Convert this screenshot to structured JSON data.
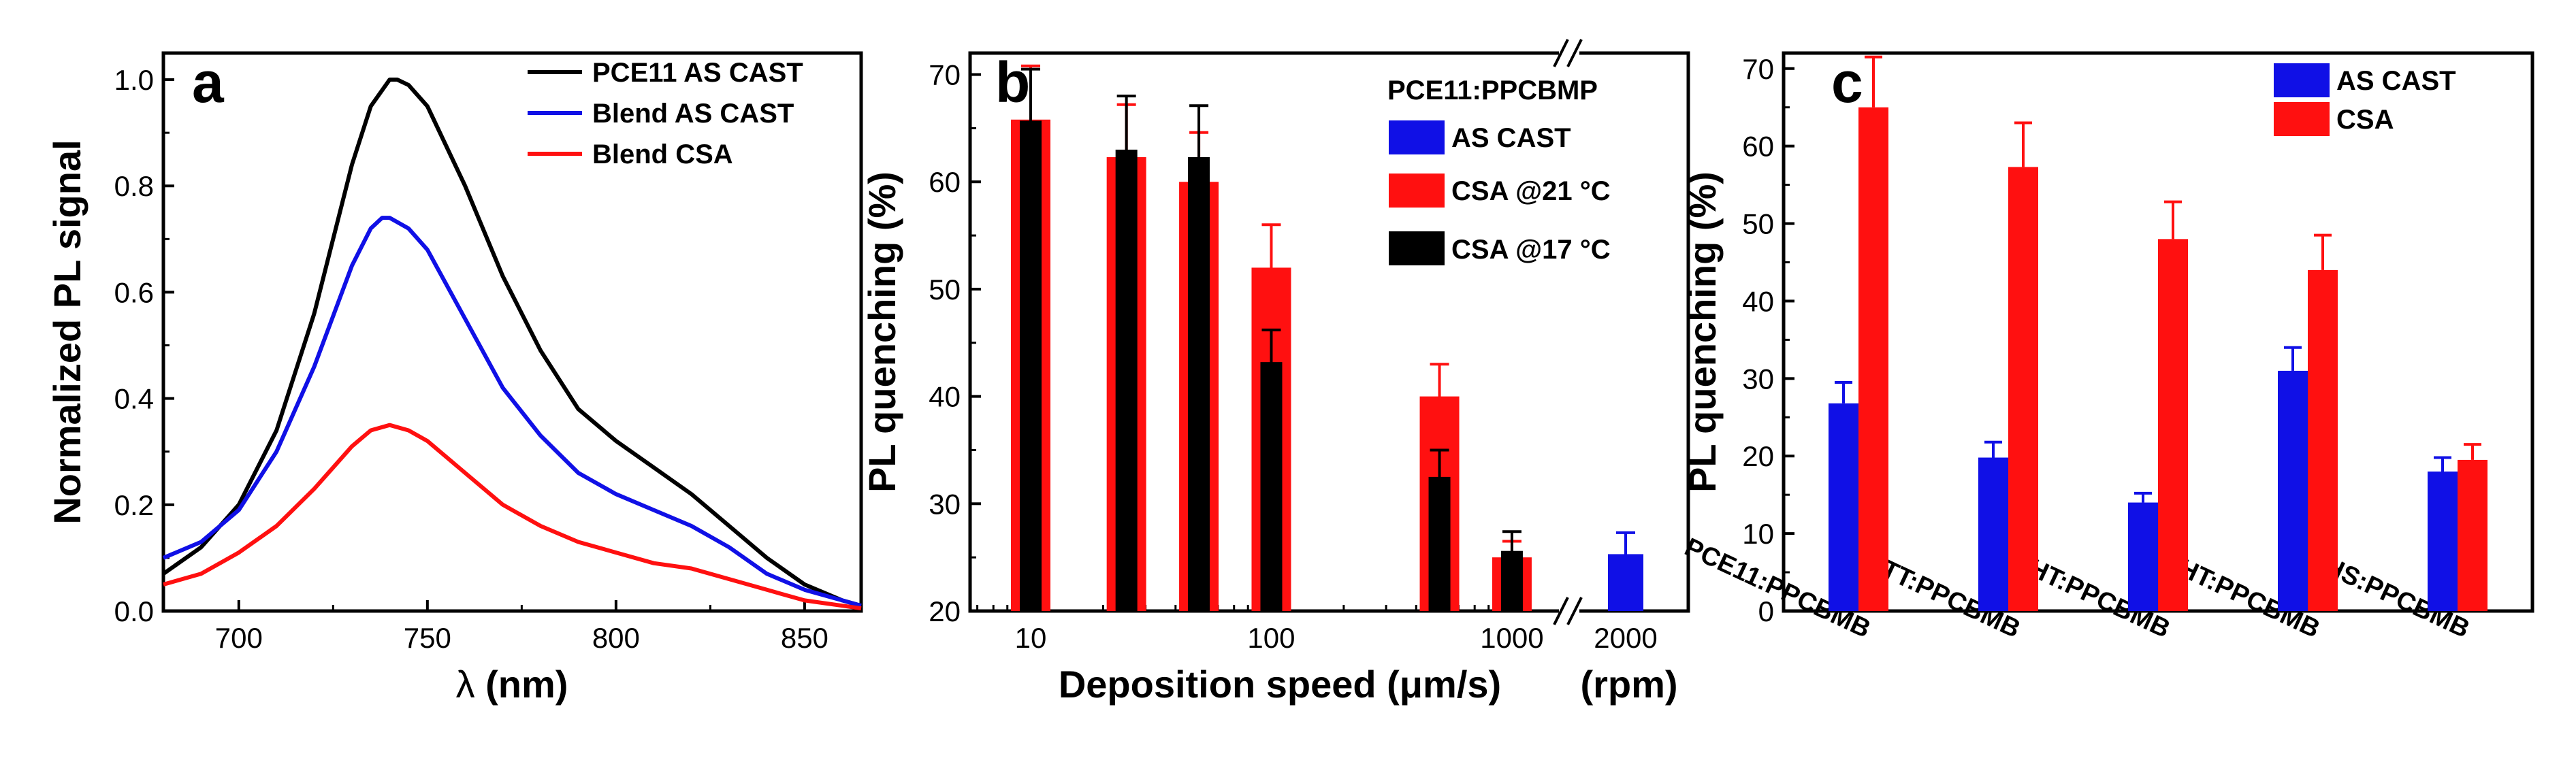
{
  "colors": {
    "black": "#000000",
    "blue": "#1010e6",
    "red": "#ff1010"
  },
  "chart_data": [
    {
      "panel": "a",
      "type": "line",
      "xlabel_symbol": "λ",
      "xlabel_unit": "(nm)",
      "ylabel": "Normalized PL signal",
      "xlim": [
        680,
        865
      ],
      "ylim": [
        0,
        1.05
      ],
      "x_ticks": [
        "700",
        "750",
        "800",
        "850"
      ],
      "y_ticks": [
        "0.0",
        "0.2",
        "0.4",
        "0.6",
        "0.8",
        "1.0"
      ],
      "legend_position": "top-right",
      "series": [
        {
          "name": "PCE11 AS CAST",
          "color": "#000000",
          "x": [
            680,
            690,
            700,
            710,
            720,
            730,
            735,
            740,
            742,
            745,
            750,
            760,
            770,
            780,
            790,
            800,
            810,
            820,
            830,
            840,
            850,
            860,
            865
          ],
          "y": [
            0.07,
            0.12,
            0.2,
            0.34,
            0.56,
            0.84,
            0.95,
            1.0,
            1.0,
            0.99,
            0.95,
            0.8,
            0.63,
            0.49,
            0.38,
            0.32,
            0.27,
            0.22,
            0.16,
            0.1,
            0.05,
            0.02,
            0.01
          ]
        },
        {
          "name": "Blend AS CAST",
          "color": "#1010e6",
          "x": [
            680,
            690,
            700,
            710,
            720,
            730,
            735,
            738,
            740,
            745,
            750,
            760,
            770,
            780,
            790,
            800,
            810,
            820,
            830,
            840,
            850,
            860,
            865
          ],
          "y": [
            0.1,
            0.13,
            0.19,
            0.3,
            0.46,
            0.65,
            0.72,
            0.74,
            0.74,
            0.72,
            0.68,
            0.55,
            0.42,
            0.33,
            0.26,
            0.22,
            0.19,
            0.16,
            0.12,
            0.07,
            0.04,
            0.02,
            0.01
          ]
        },
        {
          "name": "Blend CSA",
          "color": "#ff1010",
          "x": [
            680,
            690,
            700,
            710,
            720,
            730,
            735,
            740,
            745,
            750,
            760,
            770,
            780,
            790,
            800,
            810,
            820,
            830,
            840,
            850,
            860,
            865
          ],
          "y": [
            0.05,
            0.07,
            0.11,
            0.16,
            0.23,
            0.31,
            0.34,
            0.35,
            0.34,
            0.32,
            0.26,
            0.2,
            0.16,
            0.13,
            0.11,
            0.09,
            0.08,
            0.06,
            0.04,
            0.02,
            0.01,
            0.005
          ]
        }
      ]
    },
    {
      "panel": "b",
      "type": "bar",
      "xscale": "log",
      "xlabel": "Deposition speed (μm/s)",
      "xlabel_extra": "(rpm)",
      "ylabel": "PL quenching (%)",
      "ylim": [
        20,
        72
      ],
      "x_ticks": [
        "10",
        "100",
        "1000"
      ],
      "x_ticks_rpm": [
        "2000"
      ],
      "y_ticks": [
        "20",
        "30",
        "40",
        "50",
        "60",
        "70"
      ],
      "legend_title": "PCE11:PPCBMP",
      "legend_position": "top-right",
      "series": [
        {
          "name": "AS CAST",
          "color": "#1010e6",
          "points": [
            {
              "x_rpm": 2000,
              "y": 25.3,
              "err": 2.0
            }
          ]
        },
        {
          "name": "CSA @21 °C",
          "color": "#ff1010",
          "points": [
            {
              "x": 10,
              "y": 65.8,
              "err": 5.0
            },
            {
              "x": 25,
              "y": 62.3,
              "err": 4.9
            },
            {
              "x": 50,
              "y": 60.0,
              "err": 4.6
            },
            {
              "x": 100,
              "y": 52.0,
              "err": 4.0
            },
            {
              "x": 500,
              "y": 40.0,
              "err": 3.0
            },
            {
              "x": 1000,
              "y": 25.0,
              "err": 1.5
            }
          ]
        },
        {
          "name": "CSA @17 °C",
          "color": "#000000",
          "points": [
            {
              "x": 10,
              "y": 65.7,
              "err": 4.8
            },
            {
              "x": 25,
              "y": 63.0,
              "err": 5.0
            },
            {
              "x": 50,
              "y": 62.3,
              "err": 4.8
            },
            {
              "x": 100,
              "y": 43.2,
              "err": 3.0
            },
            {
              "x": 500,
              "y": 32.5,
              "err": 2.5
            },
            {
              "x": 1000,
              "y": 25.6,
              "err": 1.8
            }
          ]
        }
      ]
    },
    {
      "panel": "c",
      "type": "bar",
      "ylabel": "PL quenching (%)",
      "ylim": [
        0,
        72
      ],
      "y_ticks": [
        "0",
        "10",
        "20",
        "30",
        "40",
        "50",
        "60",
        "70"
      ],
      "categories": [
        "PCE11:PPCBMB",
        "PBTTT:PPCBMB",
        "P3EHT:PPCBMB",
        "P3HT:PPCBMB",
        "P3HS:PPCBMB"
      ],
      "legend_position": "top-right",
      "series": [
        {
          "name": "AS CAST",
          "color": "#1010e6",
          "values": [
            26.8,
            19.8,
            14.0,
            31.0,
            18.0
          ],
          "errors": [
            2.7,
            2.0,
            1.2,
            3.0,
            1.8
          ]
        },
        {
          "name": "CSA",
          "color": "#ff1010",
          "values": [
            65.0,
            57.3,
            48.0,
            44.0,
            19.5
          ],
          "errors": [
            6.5,
            5.7,
            4.8,
            4.5,
            2.0
          ]
        }
      ]
    }
  ]
}
